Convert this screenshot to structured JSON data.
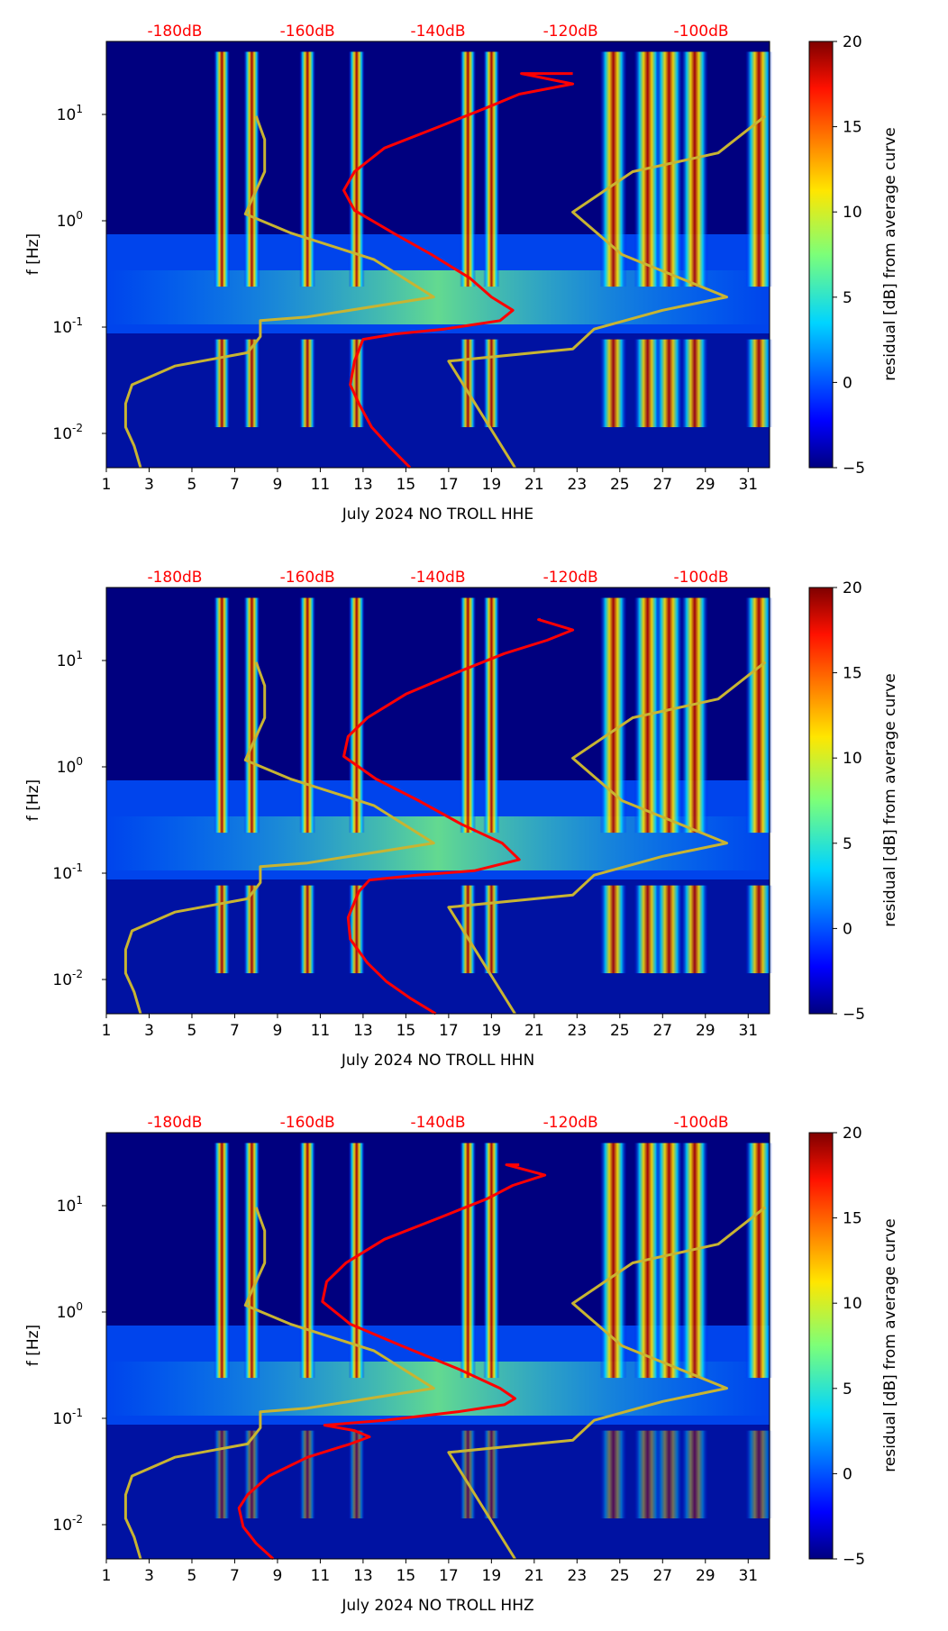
{
  "figure": {
    "colormap": "jet",
    "colors": {
      "spectrogram_low": "#00007f",
      "median_curve": "#ff0000",
      "noise_model": "#c8b432",
      "db_label": "#ff0000",
      "axis": "#000000"
    }
  },
  "chart_data": [
    {
      "type": "heatmap",
      "title": "",
      "xlabel": "July 2024 NO TROLL  HHE",
      "ylabel": "f [Hz]",
      "x_ticks": [
        "1",
        "3",
        "5",
        "7",
        "9",
        "11",
        "13",
        "15",
        "17",
        "19",
        "21",
        "23",
        "25",
        "27",
        "29",
        "31"
      ],
      "x_range": [
        1,
        32
      ],
      "y_scale": "log",
      "y_range": [
        0.005,
        50
      ],
      "y_ticks": [
        {
          "base": "10",
          "exp": "-2"
        },
        {
          "base": "10",
          "exp": "-1"
        },
        {
          "base": "10",
          "exp": "0"
        },
        {
          "base": "10",
          "exp": "1"
        }
      ],
      "top_db_scale": {
        "labels": [
          "-180dB",
          "-160dB",
          "-140dB",
          "-120dB",
          "-100dB"
        ],
        "positions_day": [
          4.2,
          10.4,
          16.5,
          22.7,
          28.8
        ]
      },
      "colorbar": {
        "label": "residual [dB] from average curve",
        "range": [
          -5,
          20
        ],
        "ticks": [
          "-5",
          "0",
          "5",
          "10",
          "15",
          "20"
        ]
      },
      "intense_days": [
        6.4,
        7.8,
        10.4,
        12.7,
        17.9,
        19.0,
        24.7,
        26.3,
        27.3,
        28.5,
        31.5
      ],
      "series": [
        {
          "name": "median PSD (red)",
          "x_day": [
            15.2,
            14.2,
            13.4,
            12.8,
            12.4,
            12.6,
            13.0,
            14.5,
            16.8,
            19.4,
            20.0,
            19.0,
            18.0,
            16.2,
            14.4,
            12.6,
            12.1,
            12.6,
            14.0,
            16.6,
            18.8,
            20.3,
            22.8,
            20.4,
            21.5,
            22.8
          ],
          "y_hz": [
            0.005,
            0.008,
            0.012,
            0.02,
            0.03,
            0.05,
            0.08,
            0.09,
            0.1,
            0.12,
            0.15,
            0.2,
            0.3,
            0.5,
            0.8,
            1.3,
            2,
            3,
            5,
            8,
            12,
            16,
            20,
            25,
            25,
            25
          ]
        },
        {
          "name": "noise model (yellow)",
          "x_day": [
            2.6,
            2.3,
            1.9,
            1.9,
            2.2,
            4.2,
            7.6,
            8.2,
            8.2,
            10.4,
            16.3,
            13.5,
            9.6,
            7.5,
            8.4,
            8.4,
            8.0
          ],
          "y_hz": [
            0.005,
            0.008,
            0.012,
            0.02,
            0.03,
            0.045,
            0.06,
            0.085,
            0.12,
            0.13,
            0.2,
            0.45,
            0.8,
            1.2,
            3,
            6,
            10
          ]
        },
        {
          "name": "noise model (yellow, right)",
          "x_day": [
            20.1,
            17.0,
            22.8,
            23.8,
            27.0,
            30.0,
            25.1,
            22.8,
            25.6,
            29.6,
            31.8
          ],
          "y_hz": [
            0.005,
            0.05,
            0.065,
            0.1,
            0.15,
            0.2,
            0.5,
            1.25,
            3,
            4.5,
            10
          ]
        }
      ]
    },
    {
      "type": "heatmap",
      "title": "",
      "xlabel": "July 2024 NO TROLL  HHN",
      "ylabel": "f [Hz]",
      "x_ticks": [
        "1",
        "3",
        "5",
        "7",
        "9",
        "11",
        "13",
        "15",
        "17",
        "19",
        "21",
        "23",
        "25",
        "27",
        "29",
        "31"
      ],
      "x_range": [
        1,
        32
      ],
      "y_scale": "log",
      "y_range": [
        0.005,
        50
      ],
      "y_ticks": [
        {
          "base": "10",
          "exp": "-2"
        },
        {
          "base": "10",
          "exp": "-1"
        },
        {
          "base": "10",
          "exp": "0"
        },
        {
          "base": "10",
          "exp": "1"
        }
      ],
      "top_db_scale": {
        "labels": [
          "-180dB",
          "-160dB",
          "-140dB",
          "-120dB",
          "-100dB"
        ],
        "positions_day": [
          4.2,
          10.4,
          16.5,
          22.7,
          28.8
        ]
      },
      "colorbar": {
        "label": "residual [dB] from average curve",
        "range": [
          -5,
          20
        ],
        "ticks": [
          "-5",
          "0",
          "5",
          "10",
          "15",
          "20"
        ]
      },
      "intense_days": [
        6.4,
        7.8,
        10.4,
        12.7,
        17.9,
        19.0,
        24.7,
        26.3,
        27.3,
        28.5,
        31.5
      ],
      "series": [
        {
          "name": "median PSD (red)",
          "x_day": [
            16.4,
            15.2,
            14.1,
            13.2,
            12.4,
            12.3,
            12.8,
            13.3,
            15.5,
            18.2,
            20.3,
            19.5,
            17.6,
            15.6,
            13.6,
            12.1,
            12.3,
            13.2,
            15.0,
            17.4,
            19.6,
            21.6,
            22.8,
            21.2,
            21.3
          ],
          "y_hz": [
            0.005,
            0.007,
            0.01,
            0.015,
            0.025,
            0.04,
            0.07,
            0.09,
            0.1,
            0.11,
            0.14,
            0.2,
            0.3,
            0.5,
            0.8,
            1.3,
            2,
            3,
            5,
            8,
            12,
            16,
            20,
            25,
            25
          ]
        },
        {
          "name": "noise model (yellow)",
          "x_day": [
            2.6,
            2.3,
            1.9,
            1.9,
            2.2,
            4.2,
            7.6,
            8.2,
            8.2,
            10.4,
            16.3,
            13.5,
            9.6,
            7.5,
            8.4,
            8.4,
            8.0
          ],
          "y_hz": [
            0.005,
            0.008,
            0.012,
            0.02,
            0.03,
            0.045,
            0.06,
            0.085,
            0.12,
            0.13,
            0.2,
            0.45,
            0.8,
            1.2,
            3,
            6,
            10
          ]
        },
        {
          "name": "noise model (yellow, right)",
          "x_day": [
            20.1,
            17.0,
            22.8,
            23.8,
            27.0,
            30.0,
            25.1,
            22.8,
            25.6,
            29.6,
            31.8
          ],
          "y_hz": [
            0.005,
            0.05,
            0.065,
            0.1,
            0.15,
            0.2,
            0.5,
            1.25,
            3,
            4.5,
            10
          ]
        }
      ]
    },
    {
      "type": "heatmap",
      "title": "",
      "xlabel": "July 2024 NO TROLL  HHZ",
      "ylabel": "f [Hz]",
      "x_ticks": [
        "1",
        "3",
        "5",
        "7",
        "9",
        "11",
        "13",
        "15",
        "17",
        "19",
        "21",
        "23",
        "25",
        "27",
        "29",
        "31"
      ],
      "x_range": [
        1,
        32
      ],
      "y_scale": "log",
      "y_range": [
        0.005,
        50
      ],
      "y_ticks": [
        {
          "base": "10",
          "exp": "-2"
        },
        {
          "base": "10",
          "exp": "-1"
        },
        {
          "base": "10",
          "exp": "0"
        },
        {
          "base": "10",
          "exp": "1"
        }
      ],
      "top_db_scale": {
        "labels": [
          "-180dB",
          "-160dB",
          "-140dB",
          "-120dB",
          "-100dB"
        ],
        "positions_day": [
          4.2,
          10.4,
          16.5,
          22.7,
          28.8
        ]
      },
      "colorbar": {
        "label": "residual [dB] from average curve",
        "range": [
          -5,
          20
        ],
        "ticks": [
          "-5",
          "0",
          "5",
          "10",
          "15",
          "20"
        ]
      },
      "intense_days": [
        6.4,
        7.8,
        10.4,
        12.7,
        17.9,
        19.0,
        24.7,
        26.3,
        27.3,
        28.5,
        31.5
      ],
      "series": [
        {
          "name": "median PSD (red)",
          "x_day": [
            8.8,
            8.0,
            7.4,
            7.2,
            7.6,
            8.6,
            10.4,
            12.4,
            13.3,
            12.6,
            11.2,
            14.0,
            17.4,
            19.6,
            20.1,
            19.4,
            17.5,
            14.8,
            12.4,
            11.1,
            11.3,
            12.2,
            14.0,
            16.6,
            18.8,
            20.0,
            21.5,
            19.7,
            20.3
          ],
          "y_hz": [
            0.005,
            0.007,
            0.01,
            0.015,
            0.02,
            0.03,
            0.045,
            0.06,
            0.07,
            0.08,
            0.09,
            0.1,
            0.12,
            0.14,
            0.16,
            0.2,
            0.3,
            0.5,
            0.8,
            1.3,
            2,
            3,
            5,
            8,
            12,
            16,
            20,
            25,
            25
          ]
        },
        {
          "name": "noise model (yellow)",
          "x_day": [
            2.6,
            2.3,
            1.9,
            1.9,
            2.2,
            4.2,
            7.6,
            8.2,
            8.2,
            10.4,
            16.3,
            13.5,
            9.6,
            7.5,
            8.4,
            8.4,
            8.0
          ],
          "y_hz": [
            0.005,
            0.008,
            0.012,
            0.02,
            0.03,
            0.045,
            0.06,
            0.085,
            0.12,
            0.13,
            0.2,
            0.45,
            0.8,
            1.2,
            3,
            6,
            10
          ]
        },
        {
          "name": "noise model (yellow, right)",
          "x_day": [
            20.1,
            17.0,
            22.8,
            23.8,
            27.0,
            30.0,
            25.1,
            22.8,
            25.6,
            29.6,
            31.8
          ],
          "y_hz": [
            0.005,
            0.05,
            0.065,
            0.1,
            0.15,
            0.2,
            0.5,
            1.25,
            3,
            4.5,
            10
          ]
        }
      ]
    }
  ]
}
